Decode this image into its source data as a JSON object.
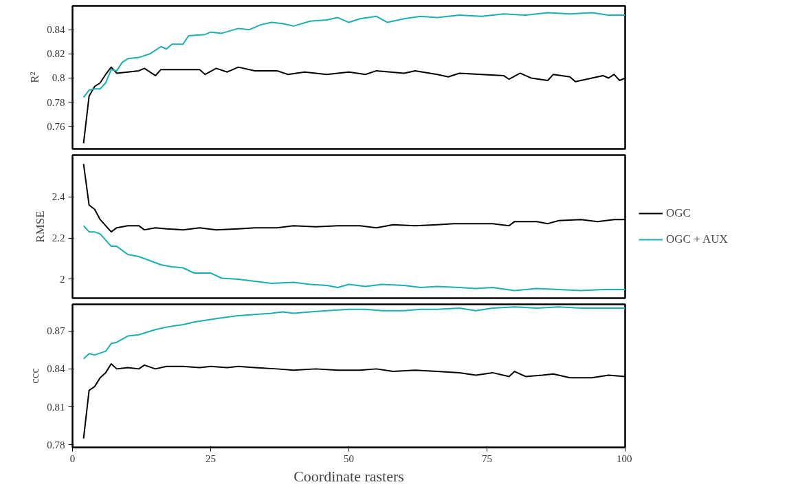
{
  "chart_data": [
    {
      "type": "line",
      "ylabel": "R²",
      "xlim": [
        0,
        100
      ],
      "ylim": [
        0.7414,
        0.8597
      ],
      "yticks": [
        0.76,
        0.78,
        0.8,
        0.82,
        0.84
      ],
      "tick_labels": "y",
      "grid": false,
      "series": [
        {
          "color": "#000000",
          "x": [
            2,
            3,
            4,
            5,
            6,
            7,
            8,
            10,
            12,
            13,
            15,
            16,
            20,
            23,
            24,
            26,
            28,
            30,
            33,
            37,
            39,
            42,
            46,
            50,
            53,
            55,
            60,
            62,
            66,
            68,
            70,
            74,
            78,
            79,
            81,
            83,
            86,
            87,
            90,
            91,
            93,
            96,
            97,
            98,
            99,
            100
          ],
          "values": [
            0.746,
            0.785,
            0.793,
            0.796,
            0.803,
            0.809,
            0.804,
            0.805,
            0.806,
            0.808,
            0.802,
            0.807,
            0.807,
            0.807,
            0.803,
            0.808,
            0.805,
            0.809,
            0.806,
            0.806,
            0.803,
            0.805,
            0.803,
            0.805,
            0.803,
            0.806,
            0.804,
            0.806,
            0.803,
            0.801,
            0.804,
            0.803,
            0.802,
            0.799,
            0.804,
            0.8,
            0.798,
            0.803,
            0.801,
            0.797,
            0.799,
            0.802,
            0.8,
            0.803,
            0.798,
            0.8
          ]
        },
        {
          "color": "#1aafb0",
          "x": [
            2,
            3,
            4,
            5,
            6,
            7,
            8,
            9,
            10,
            12,
            14,
            16,
            17,
            18,
            20,
            21,
            24,
            25,
            27,
            30,
            32,
            34,
            36,
            38,
            40,
            43,
            46,
            48,
            50,
            52,
            55,
            57,
            60,
            63,
            66,
            70,
            74,
            78,
            82,
            86,
            90,
            94,
            97,
            100
          ],
          "values": [
            0.784,
            0.79,
            0.791,
            0.791,
            0.796,
            0.807,
            0.806,
            0.813,
            0.816,
            0.817,
            0.82,
            0.826,
            0.824,
            0.828,
            0.828,
            0.835,
            0.836,
            0.838,
            0.837,
            0.841,
            0.84,
            0.844,
            0.846,
            0.845,
            0.843,
            0.847,
            0.848,
            0.85,
            0.846,
            0.849,
            0.851,
            0.846,
            0.849,
            0.851,
            0.85,
            0.852,
            0.851,
            0.853,
            0.852,
            0.854,
            0.853,
            0.854,
            0.852,
            0.852
          ]
        }
      ]
    },
    {
      "type": "line",
      "ylabel": "RMSE",
      "xlim": [
        0,
        100
      ],
      "ylim": [
        1.908,
        2.603
      ],
      "yticks": [
        2.0,
        2.2,
        2.4
      ],
      "tick_labels": "y",
      "grid": false,
      "legend": "right",
      "series": [
        {
          "name": "OGC",
          "color": "#000000",
          "x": [
            2,
            3,
            4,
            5,
            6,
            7,
            8,
            10,
            12,
            13,
            15,
            17,
            20,
            23,
            26,
            30,
            33,
            37,
            40,
            44,
            48,
            52,
            55,
            58,
            62,
            66,
            69,
            72,
            76,
            79,
            80,
            84,
            86,
            88,
            92,
            95,
            98,
            100
          ],
          "values": [
            2.56,
            2.36,
            2.34,
            2.29,
            2.26,
            2.23,
            2.25,
            2.26,
            2.26,
            2.24,
            2.25,
            2.245,
            2.24,
            2.25,
            2.24,
            2.245,
            2.25,
            2.25,
            2.26,
            2.255,
            2.26,
            2.26,
            2.25,
            2.265,
            2.26,
            2.265,
            2.27,
            2.27,
            2.27,
            2.26,
            2.28,
            2.28,
            2.27,
            2.285,
            2.29,
            2.28,
            2.29,
            2.29
          ]
        },
        {
          "name": "OGC + AUX",
          "color": "#1aafb0",
          "x": [
            2,
            3,
            4,
            5,
            7,
            8,
            10,
            12,
            14,
            16,
            18,
            20,
            22,
            25,
            27,
            30,
            33,
            36,
            40,
            43,
            46,
            48,
            50,
            53,
            56,
            60,
            63,
            66,
            70,
            73,
            76,
            80,
            84,
            88,
            92,
            96,
            100
          ],
          "values": [
            2.26,
            2.23,
            2.23,
            2.22,
            2.16,
            2.16,
            2.12,
            2.11,
            2.09,
            2.07,
            2.06,
            2.055,
            2.03,
            2.03,
            2.005,
            2.0,
            1.99,
            1.98,
            1.985,
            1.975,
            1.97,
            1.96,
            1.975,
            1.965,
            1.975,
            1.97,
            1.96,
            1.965,
            1.96,
            1.955,
            1.96,
            1.945,
            1.955,
            1.95,
            1.945,
            1.95,
            1.95
          ]
        }
      ]
    },
    {
      "type": "line",
      "ylabel": "ccc",
      "xlabel": "Coordinate rasters",
      "xlim": [
        0,
        100
      ],
      "ylim": [
        0.778,
        0.891
      ],
      "xticks": [
        0,
        25,
        50,
        75,
        100
      ],
      "yticks": [
        0.78,
        0.81,
        0.84,
        0.87
      ],
      "grid": false,
      "series": [
        {
          "color": "#000000",
          "x": [
            2,
            3,
            4,
            5,
            6,
            7,
            8,
            10,
            12,
            13,
            15,
            17,
            20,
            23,
            25,
            28,
            30,
            33,
            37,
            40,
            44,
            48,
            52,
            55,
            58,
            62,
            66,
            70,
            73,
            76,
            79,
            80,
            82,
            85,
            87,
            90,
            94,
            97,
            100
          ],
          "values": [
            0.785,
            0.823,
            0.826,
            0.833,
            0.837,
            0.844,
            0.84,
            0.841,
            0.84,
            0.843,
            0.84,
            0.842,
            0.842,
            0.841,
            0.842,
            0.841,
            0.842,
            0.841,
            0.84,
            0.839,
            0.84,
            0.839,
            0.839,
            0.84,
            0.838,
            0.839,
            0.838,
            0.837,
            0.835,
            0.837,
            0.834,
            0.838,
            0.834,
            0.835,
            0.836,
            0.833,
            0.833,
            0.835,
            0.834
          ]
        },
        {
          "color": "#1aafb0",
          "x": [
            2,
            3,
            4,
            6,
            7,
            8,
            10,
            12,
            15,
            17,
            20,
            22,
            25,
            28,
            30,
            33,
            36,
            38,
            40,
            43,
            46,
            50,
            53,
            56,
            60,
            63,
            66,
            70,
            73,
            76,
            80,
            84,
            88,
            92,
            96,
            100
          ],
          "values": [
            0.848,
            0.852,
            0.851,
            0.854,
            0.86,
            0.861,
            0.866,
            0.867,
            0.871,
            0.873,
            0.875,
            0.877,
            0.879,
            0.881,
            0.882,
            0.883,
            0.884,
            0.885,
            0.884,
            0.885,
            0.886,
            0.887,
            0.887,
            0.886,
            0.886,
            0.887,
            0.887,
            0.888,
            0.886,
            0.888,
            0.889,
            0.888,
            0.889,
            0.888,
            0.888,
            0.888
          ]
        }
      ]
    }
  ]
}
